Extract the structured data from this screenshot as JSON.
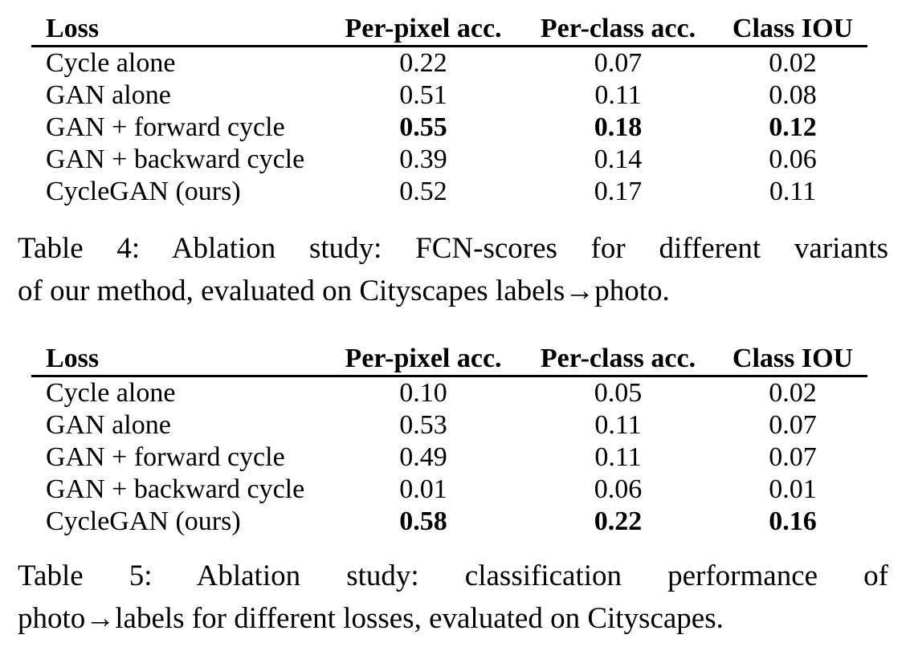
{
  "colors": {
    "background": "#ffffff",
    "text": "#000000"
  },
  "table4": {
    "columns": [
      "Loss",
      "Per-pixel acc.",
      "Per-class acc.",
      "Class IOU"
    ],
    "rows": [
      {
        "loss": "Cycle alone",
        "per_pixel": "0.22",
        "per_class": "0.07",
        "class_iou": "0.02",
        "bold": false
      },
      {
        "loss": "GAN alone",
        "per_pixel": "0.51",
        "per_class": "0.11",
        "class_iou": "0.08",
        "bold": false
      },
      {
        "loss": "GAN + forward cycle",
        "per_pixel": "0.55",
        "per_class": "0.18",
        "class_iou": "0.12",
        "bold": true
      },
      {
        "loss": "GAN + backward cycle",
        "per_pixel": "0.39",
        "per_class": "0.14",
        "class_iou": "0.06",
        "bold": false
      },
      {
        "loss": "CycleGAN (ours)",
        "per_pixel": "0.52",
        "per_class": "0.17",
        "class_iou": "0.11",
        "bold": false
      }
    ],
    "caption": {
      "line1": "Table 4: Ablation study: FCN-scores for different variants",
      "line2": "of our method, evaluated on Cityscapes labels→photo."
    }
  },
  "table5": {
    "columns": [
      "Loss",
      "Per-pixel acc.",
      "Per-class acc.",
      "Class IOU"
    ],
    "rows": [
      {
        "loss": "Cycle alone",
        "per_pixel": "0.10",
        "per_class": "0.05",
        "class_iou": "0.02",
        "bold": false
      },
      {
        "loss": "GAN alone",
        "per_pixel": "0.53",
        "per_class": "0.11",
        "class_iou": "0.07",
        "bold": false
      },
      {
        "loss": "GAN + forward cycle",
        "per_pixel": "0.49",
        "per_class": "0.11",
        "class_iou": "0.07",
        "bold": false
      },
      {
        "loss": "GAN + backward cycle",
        "per_pixel": "0.01",
        "per_class": "0.06",
        "class_iou": "0.01",
        "bold": false
      },
      {
        "loss": "CycleGAN (ours)",
        "per_pixel": "0.58",
        "per_class": "0.22",
        "class_iou": "0.16",
        "bold": true
      }
    ],
    "caption": {
      "line1": "Table 5: Ablation study: classification performance of",
      "line2": "photo→labels for different losses, evaluated on Cityscapes."
    }
  }
}
